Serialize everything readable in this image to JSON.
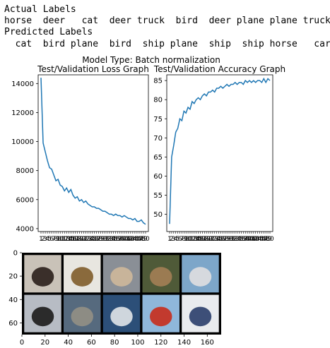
{
  "labels": {
    "actual_heading": "Actual Labels",
    "actual_row": "horse  deer   cat  deer truck  bird  deer plane plane truck",
    "predicted_heading": "Predicted Labels",
    "predicted_row": "  cat  bird plane  bird  ship plane  ship  ship horse   car"
  },
  "figure_title": "Model Type: Batch normalization",
  "chart_data": [
    {
      "type": "line",
      "title": "Test/Validation Loss Graph",
      "xlabel": "",
      "ylabel": "",
      "ylim": [
        3800,
        14600
      ],
      "yticks": [
        4000,
        6000,
        8000,
        10000,
        12000,
        14000
      ],
      "x_start": 1,
      "x_end": 50,
      "color": "#1f77b4",
      "values": [
        14400,
        9900,
        9300,
        8700,
        8200,
        8100,
        7700,
        7300,
        7400,
        7000,
        6900,
        6600,
        6800,
        6500,
        6700,
        6300,
        6100,
        6200,
        5900,
        6000,
        5800,
        5900,
        5700,
        5600,
        5500,
        5500,
        5400,
        5400,
        5300,
        5200,
        5200,
        5100,
        5000,
        5000,
        4900,
        5000,
        4900,
        4900,
        4800,
        4900,
        4800,
        4700,
        4700,
        4600,
        4700,
        4500,
        4500,
        4600,
        4400,
        4300
      ]
    },
    {
      "type": "line",
      "title": "Test/Validation Accuracy Graph",
      "xlabel": "",
      "ylabel": "",
      "ylim": [
        45.5,
        86.5
      ],
      "yticks": [
        50,
        55,
        60,
        65,
        70,
        75,
        80,
        85
      ],
      "x_start": 1,
      "x_end": 50,
      "color": "#1f77b4",
      "values": [
        47.5,
        65.0,
        68.0,
        71.5,
        72.5,
        75.0,
        74.5,
        77.0,
        76.5,
        78.0,
        77.5,
        79.5,
        79.0,
        80.0,
        80.5,
        80.0,
        81.0,
        81.5,
        81.0,
        82.0,
        82.0,
        82.5,
        82.0,
        83.0,
        83.0,
        83.5,
        83.0,
        83.5,
        84.0,
        83.5,
        84.0,
        84.0,
        84.5,
        84.0,
        84.5,
        84.5,
        84.0,
        85.0,
        84.5,
        85.0,
        84.5,
        85.0,
        84.5,
        85.0,
        85.0,
        84.5,
        85.5,
        84.5,
        85.5,
        85.0
      ]
    }
  ],
  "image_grid": {
    "yticks": [
      "0",
      "20",
      "40",
      "60"
    ],
    "xticks": [
      "0",
      "20",
      "40",
      "60",
      "80",
      "100",
      "120",
      "140",
      "160"
    ],
    "tiles": [
      {
        "name": "horse",
        "bg": "#c9c2b8",
        "fg": "#3a2f2a"
      },
      {
        "name": "deer",
        "bg": "#e8e6e0",
        "fg": "#8a6a3c"
      },
      {
        "name": "cat",
        "bg": "#8a8f96",
        "fg": "#c8b49a"
      },
      {
        "name": "deer",
        "bg": "#4f5a38",
        "fg": "#9b7b52"
      },
      {
        "name": "truck",
        "bg": "#7da6c9",
        "fg": "#d6d9de"
      },
      {
        "name": "bird",
        "bg": "#b7bcc4",
        "fg": "#2b2b2b"
      },
      {
        "name": "deer",
        "bg": "#566a7e",
        "fg": "#8d8c84"
      },
      {
        "name": "plane",
        "bg": "#2c4f78",
        "fg": "#cfd6dd"
      },
      {
        "name": "plane",
        "bg": "#8fb7da",
        "fg": "#c23a2e"
      },
      {
        "name": "truck",
        "bg": "#e9ebee",
        "fg": "#3d4f78"
      }
    ]
  }
}
